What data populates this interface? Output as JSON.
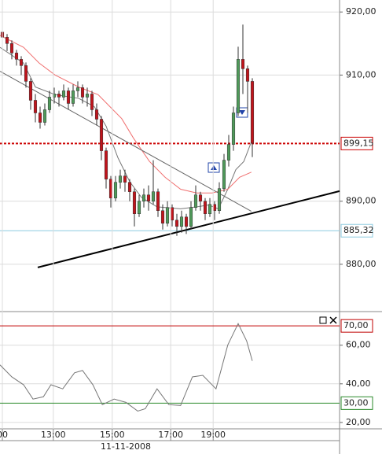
{
  "chart_data": [
    {
      "type": "candlestick",
      "up_color": "#4f9a5a",
      "down_color": "#c0141c",
      "wick_color": "#333",
      "xlim": [
        -0.5,
        71.5
      ],
      "ylim": [
        872.5,
        921.9
      ],
      "grid": true,
      "yticks": [
        {
          "value": 880,
          "label": "880,00"
        },
        {
          "value": 890,
          "label": "890,00"
        },
        {
          "value": 910,
          "label": "910,00"
        },
        {
          "value": 920,
          "label": "920,00"
        }
      ],
      "open": [
        916.8,
        916.0,
        915.0,
        913.5,
        912.5,
        911.5,
        909.0,
        906.0,
        904.0,
        902.5,
        904.5,
        906.5,
        907.0,
        906.5,
        907.5,
        905.5,
        907.5,
        908.0,
        906.5,
        907.0,
        904.5,
        903.0,
        898.0,
        893.5,
        890.5,
        893.0,
        894.0,
        893.0,
        891.5,
        888.0,
        890.0,
        891.0,
        890.0,
        891.5,
        888.5,
        886.5,
        889.0,
        887.0,
        886.0,
        887.5,
        886.0,
        889.0,
        891.0,
        890.0,
        888.0,
        889.5,
        888.5,
        892.0,
        896.5,
        899.0,
        904.0,
        912.5,
        911.0,
        909.0
      ],
      "high": [
        917.0,
        916.5,
        915.5,
        914.0,
        913.0,
        912.0,
        909.5,
        907.0,
        905.0,
        905.5,
        907.5,
        908.0,
        907.5,
        908.5,
        908.0,
        908.5,
        909.0,
        908.5,
        908.0,
        907.5,
        905.5,
        903.5,
        898.5,
        894.0,
        894.0,
        895.0,
        895.0,
        893.5,
        892.0,
        891.0,
        892.0,
        892.5,
        896.5,
        892.0,
        889.5,
        890.0,
        889.5,
        888.0,
        888.5,
        888.0,
        890.0,
        892.5,
        891.5,
        890.5,
        890.5,
        890.0,
        893.0,
        897.5,
        900.5,
        905.0,
        914.5,
        918.0,
        911.5,
        909.5
      ],
      "low": [
        914.8,
        913.8,
        912.5,
        911.5,
        910.0,
        908.0,
        904.5,
        902.5,
        901.5,
        902.0,
        904.0,
        905.5,
        905.0,
        906.0,
        904.5,
        905.0,
        906.5,
        905.5,
        905.0,
        903.5,
        902.0,
        896.5,
        892.0,
        889.0,
        890.0,
        892.0,
        891.5,
        890.0,
        886.0,
        887.5,
        889.0,
        888.5,
        889.5,
        887.5,
        885.5,
        886.0,
        886.0,
        884.5,
        885.0,
        884.8,
        885.5,
        888.5,
        888.5,
        887.0,
        887.5,
        887.0,
        888.0,
        891.5,
        895.5,
        898.0,
        903.5,
        907.0,
        904.0,
        897.0
      ],
      "close": [
        916.0,
        915.0,
        913.5,
        912.5,
        911.5,
        909.0,
        906.0,
        904.0,
        902.5,
        904.5,
        906.5,
        907.0,
        906.5,
        907.5,
        905.5,
        907.5,
        908.0,
        906.5,
        907.0,
        904.5,
        903.0,
        898.0,
        893.5,
        890.5,
        893.0,
        894.0,
        893.0,
        891.5,
        888.0,
        890.0,
        891.0,
        890.0,
        891.5,
        888.5,
        886.5,
        889.0,
        887.0,
        886.0,
        887.5,
        886.0,
        889.0,
        891.0,
        890.0,
        888.0,
        889.5,
        888.5,
        892.0,
        896.5,
        899.0,
        904.0,
        912.5,
        911.0,
        909.0,
        899.2
      ],
      "lines": [
        {
          "color": "#777",
          "width": 1,
          "x": [
            -0.5,
            4.5,
            7,
            11.2,
            16.2,
            19.5,
            22,
            24.5,
            27,
            29.5,
            32.8,
            37.8,
            41.2,
            43.7,
            45.8,
            47.8,
            49.5,
            51.2,
            52.8
          ],
          "values": [
            914.4,
            911.9,
            908.1,
            906.9,
            906.3,
            905.0,
            901.9,
            896.9,
            893.1,
            890.6,
            889.1,
            888.8,
            889.1,
            889.4,
            888.8,
            891.9,
            895.0,
            896.3,
            899.4
          ]
        },
        {
          "color": "#f07070",
          "width": 1,
          "x": [
            -0.5,
            4.5,
            7.8,
            11.2,
            16.2,
            20.3,
            22.8,
            25.3,
            27.8,
            31.2,
            34.5,
            37.8,
            41.2,
            44.5,
            47.8,
            50.3,
            52.8
          ],
          "values": [
            916.3,
            914.4,
            911.9,
            910.0,
            908.1,
            906.9,
            905.0,
            903.1,
            900.0,
            896.3,
            893.8,
            891.9,
            891.3,
            891.3,
            891.9,
            893.8,
            894.6
          ]
        },
        {
          "color": "#666",
          "width": 1,
          "x": [
            -0.5,
            52.8
          ],
          "values": [
            910.6,
            888.4
          ]
        },
        {
          "color": "#000",
          "width": 2,
          "x": [
            7.5,
            71.5
          ],
          "values": [
            879.5,
            891.6
          ]
        }
      ],
      "levels": [
        {
          "value": 899.15,
          "label": "899,15",
          "color": "#cc0000",
          "dash": "3,2",
          "width": 2
        },
        {
          "value": 885.32,
          "label": "885,32",
          "color": "#8ccbe0",
          "dash": "",
          "width": 1
        }
      ]
    },
    {
      "type": "line",
      "xlim": [
        -0.5,
        71.5
      ],
      "ylim": [
        16.7,
        77.4
      ],
      "grid": true,
      "yticks": [
        {
          "value": 20,
          "label": "20,00"
        },
        {
          "value": 40,
          "label": "40,00"
        },
        {
          "value": 60,
          "label": "60,00"
        }
      ],
      "xticks": [
        {
          "value": 0,
          "label": "00"
        },
        {
          "value": 10.8,
          "label": "13:00"
        },
        {
          "value": 23.3,
          "label": "15:00"
        },
        {
          "value": 35.7,
          "label": "17:00"
        },
        {
          "value": 44.7,
          "label": "19:00"
        }
      ],
      "xlabel": "11-11-2008",
      "series": [
        {
          "color": "#777",
          "x": [
            -0.5,
            2,
            4.5,
            6.5,
            8.7,
            10.3,
            12.8,
            15.3,
            17,
            19.2,
            21.2,
            23.7,
            26.2,
            28.7,
            30.3,
            32.8,
            35.3,
            37.8,
            40.3,
            42.5,
            45.3,
            47.8,
            50,
            51.8,
            53
          ],
          "values": [
            49.8,
            43.6,
            39.5,
            32.1,
            33.3,
            39.5,
            37.4,
            45.7,
            46.9,
            39.5,
            29.2,
            32.1,
            30.4,
            25.9,
            27.1,
            37.4,
            29.2,
            28.8,
            43.6,
            44.4,
            37.4,
            60.1,
            71.2,
            62.2,
            51.9
          ]
        }
      ],
      "levels": [
        {
          "value": 70,
          "label": "70,00",
          "color": "#c00000"
        },
        {
          "value": 30,
          "label": "30,00",
          "color": "#2a8a2a"
        }
      ]
    }
  ]
}
